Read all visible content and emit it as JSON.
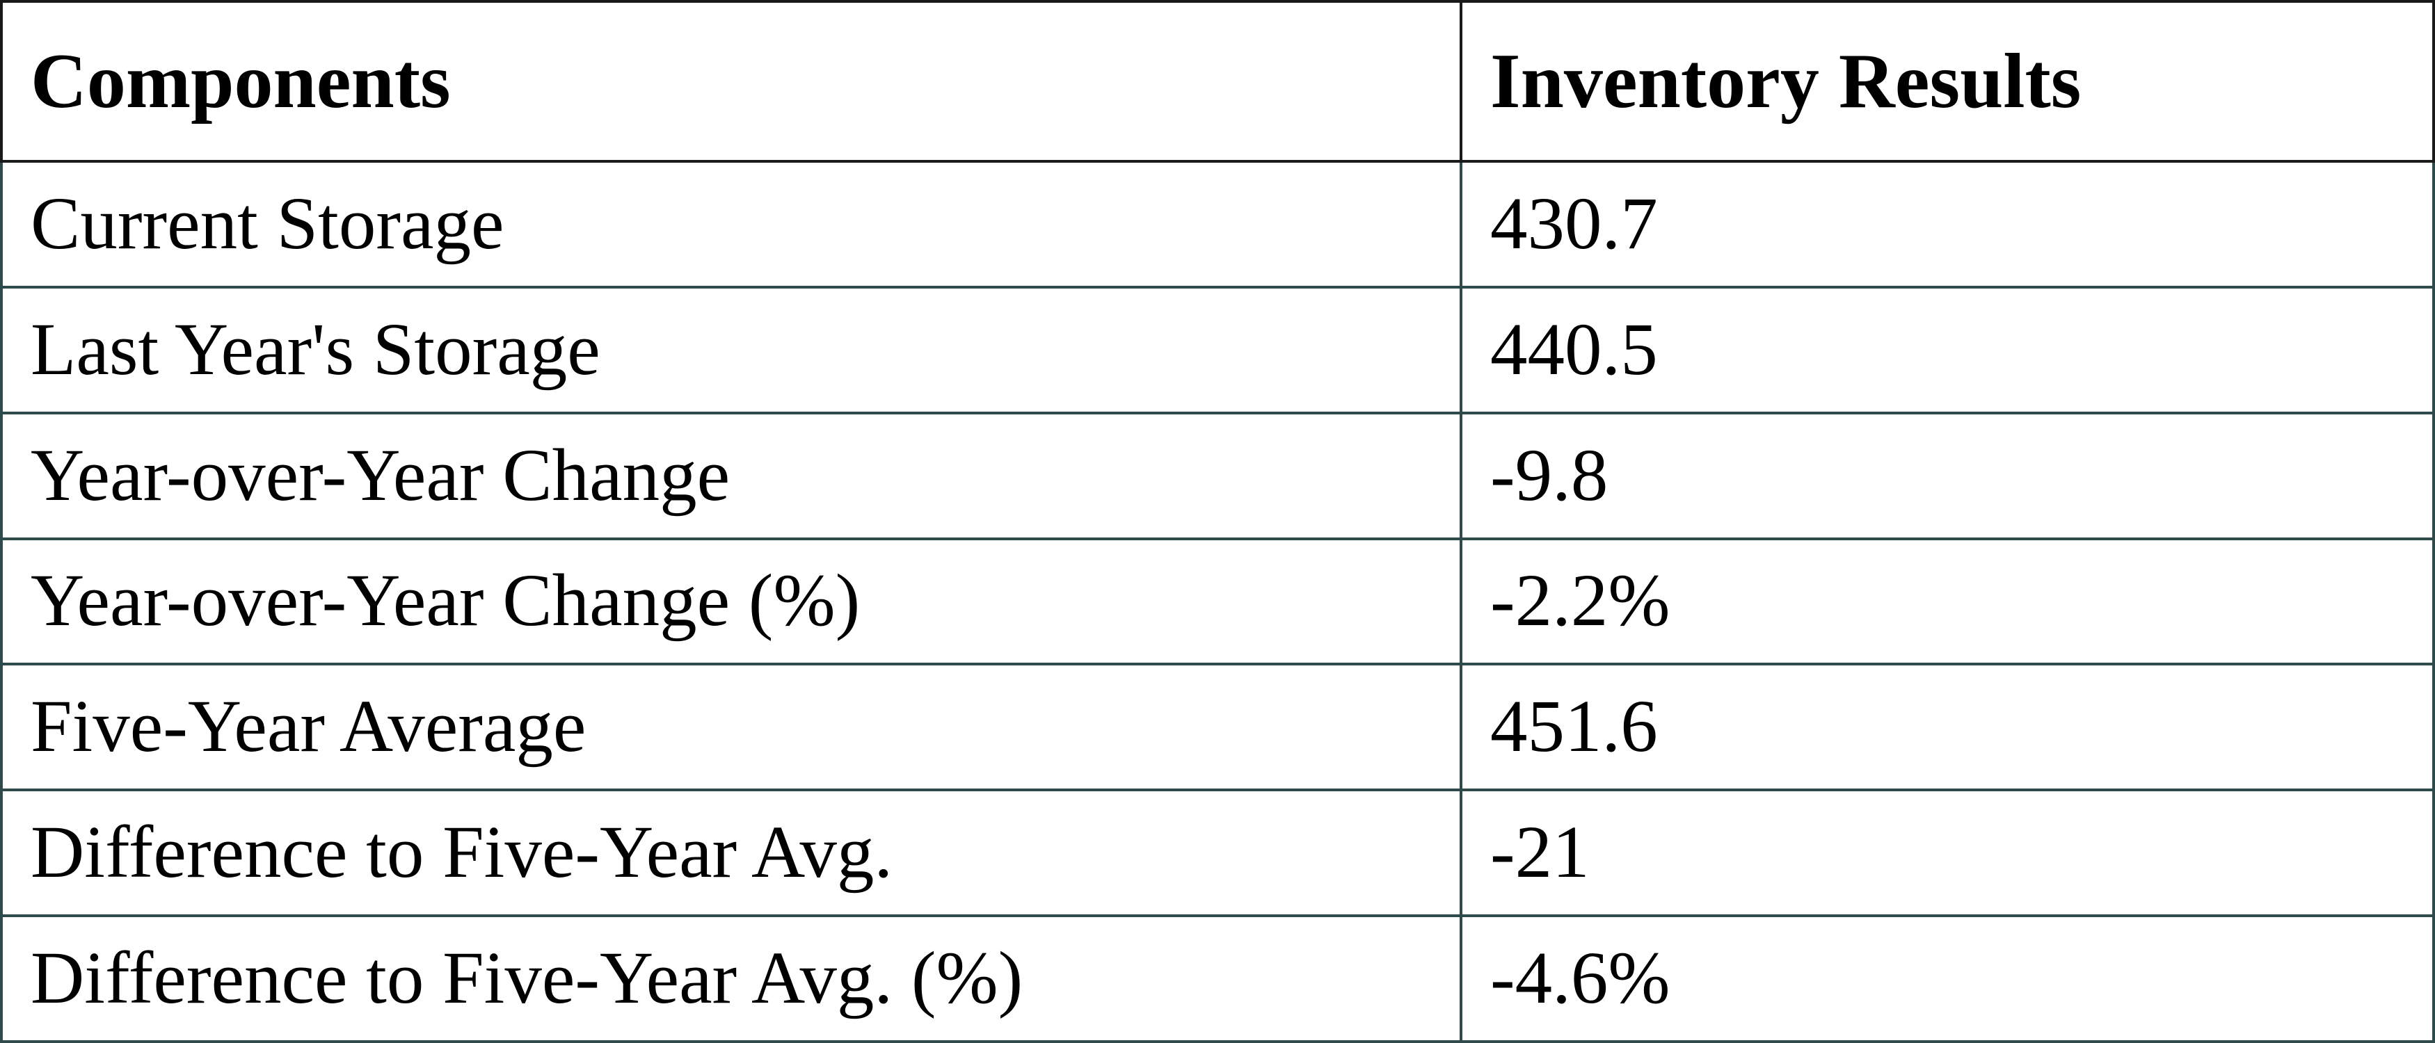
{
  "table": {
    "header": [
      "Components",
      "Inventory Results"
    ],
    "rows": [
      [
        "Current Storage",
        "430.7"
      ],
      [
        "Last Year's Storage",
        "440.5"
      ],
      [
        "Year-over-Year Change",
        "-9.8"
      ],
      [
        "Year-over-Year Change (%)",
        "-2.2%"
      ],
      [
        "Five-Year Average",
        "451.6"
      ],
      [
        "Difference to Five-Year Avg.",
        "-21"
      ],
      [
        "Difference to Five-Year Avg. (%)",
        "-4.6%"
      ]
    ]
  }
}
